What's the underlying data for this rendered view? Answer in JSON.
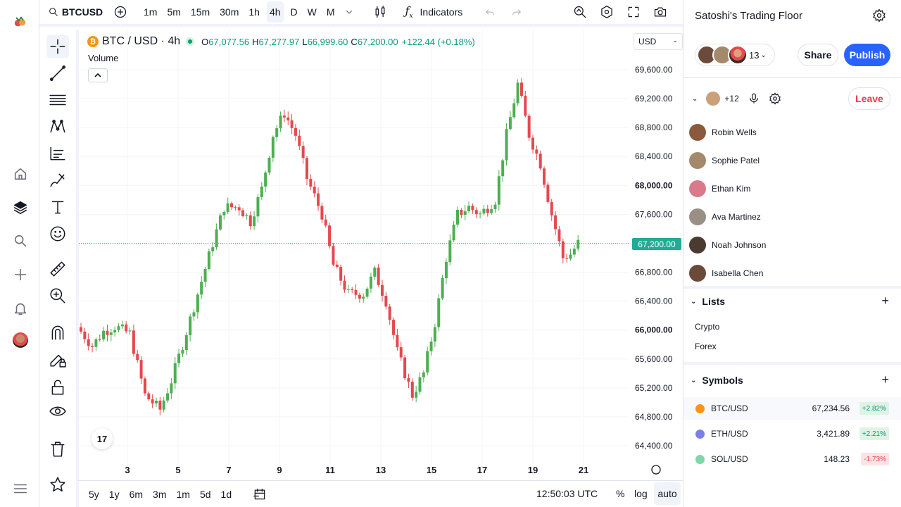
{
  "toolbar": {
    "symbol": "BTCUSD",
    "intervals": [
      "1m",
      "5m",
      "15m",
      "30m",
      "1h",
      "4h",
      "D",
      "W",
      "M"
    ],
    "active_interval": "4h",
    "indicators_label": "Indicators"
  },
  "legend": {
    "coin_glyph": "₿",
    "title": "BTC / USD · 4h",
    "o_label": "O",
    "o_value": "67,077.56",
    "h_label": "H",
    "h_value": "67,277.97",
    "l_label": "L",
    "l_value": "66,999.60",
    "c_label": "C",
    "c_value": "67,200.00",
    "change": "+122.44 (+0.18%)",
    "volume_label": "Volume"
  },
  "currency": "USD",
  "last_price_tag": "67,200.00",
  "tv_logo": "17",
  "bottom": {
    "ranges": [
      "5y",
      "1y",
      "6m",
      "3m",
      "1m",
      "5d",
      "1d"
    ],
    "time": "12:50:03 UTC",
    "pct": "%",
    "log": "log",
    "auto": "auto"
  },
  "chart_data": {
    "type": "candlestick",
    "symbol": "BTC / USD",
    "timeframe": "4h",
    "x_tick_labels": [
      "3",
      "5",
      "7",
      "9",
      "11",
      "13",
      "15",
      "17",
      "19",
      "21"
    ],
    "y_tick_labels": [
      "69,600.00",
      "69,200.00",
      "68,800.00",
      "68,400.00",
      "68,000.00",
      "67,600.00",
      "67,200.00",
      "66,800.00",
      "66,400.00",
      "66,000.00",
      "65,600.00",
      "65,200.00",
      "64,800.00",
      "64,400.00"
    ],
    "y_bold_labels": [
      "68,000.00",
      "66,000.00"
    ],
    "ylim": [
      64300,
      69800
    ],
    "last_price": 67200,
    "colors": {
      "up": "#4caf50",
      "down": "#e5484d"
    },
    "close_path": [
      [
        0,
        65980
      ],
      [
        3,
        65780
      ],
      [
        6,
        65980
      ],
      [
        9,
        66050
      ],
      [
        13,
        65950
      ],
      [
        17,
        65100
      ],
      [
        21,
        64900
      ],
      [
        24,
        65300
      ],
      [
        27,
        65800
      ],
      [
        31,
        66500
      ],
      [
        35,
        67200
      ],
      [
        38,
        67700
      ],
      [
        42,
        67700
      ],
      [
        45,
        67500
      ],
      [
        48,
        67950
      ],
      [
        51,
        68700
      ],
      [
        54,
        69000
      ],
      [
        57,
        68700
      ],
      [
        60,
        68100
      ],
      [
        64,
        67600
      ],
      [
        67,
        66900
      ],
      [
        71,
        66500
      ],
      [
        75,
        66500
      ],
      [
        78,
        66800
      ],
      [
        81,
        66400
      ],
      [
        84,
        65700
      ],
      [
        88,
        65100
      ],
      [
        91,
        65400
      ],
      [
        94,
        66100
      ],
      [
        97,
        67000
      ],
      [
        100,
        67600
      ],
      [
        103,
        67700
      ],
      [
        106,
        67600
      ],
      [
        110,
        67800
      ],
      [
        113,
        68700
      ],
      [
        116,
        69400
      ],
      [
        119,
        68700
      ],
      [
        122,
        68300
      ],
      [
        125,
        67600
      ],
      [
        128,
        67000
      ],
      [
        130,
        67050
      ],
      [
        132,
        67200
      ]
    ],
    "candle_count": 133
  },
  "right_panel": {
    "title": "Satoshi's Trading Floor",
    "avatar_count": "13",
    "share_label": "Share",
    "publish_label": "Publish",
    "voice_extra": "+12",
    "leave_label": "Leave",
    "members": [
      {
        "name": "Robin Wells",
        "color": "#8a5a3c"
      },
      {
        "name": "Sophie Patel",
        "color": "#a48a6a"
      },
      {
        "name": "Ethan Kim",
        "color": "#d97a8a"
      },
      {
        "name": "Ava Martinez",
        "color": "#9a8f84"
      },
      {
        "name": "Noah Johnson",
        "color": "#4a3a32"
      },
      {
        "name": "Isabella Chen",
        "color": "#6b4a3a"
      }
    ],
    "lists_label": "Lists",
    "lists": [
      "Crypto",
      "Forex"
    ],
    "symbols_label": "Symbols",
    "symbols": [
      {
        "name": "BTC/USD",
        "price": "67,234.56",
        "change": "+2.82%",
        "dir": "up",
        "icon_color": "#f7931a"
      },
      {
        "name": "ETH/USD",
        "price": "3,421.89",
        "change": "+2.21%",
        "dir": "up",
        "icon_color": "#7b7fe8"
      },
      {
        "name": "SOL/USD",
        "price": "148.23",
        "change": "-1.73%",
        "dir": "down",
        "icon_color": "#7fd6a8"
      }
    ]
  }
}
